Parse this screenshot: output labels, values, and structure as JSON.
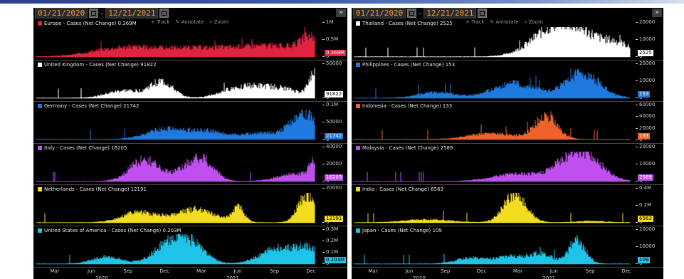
{
  "left": {
    "start_date": "01/21/2020",
    "end_date": "12/21/2021",
    "toolbar": {
      "track": "Track",
      "annotate": "Annotate",
      "zoom": "Zoom"
    },
    "x_ticks": [
      "Mar",
      "Jun",
      "Sep",
      "Dec",
      "Mar",
      "Jun",
      "Sep",
      "Dec"
    ],
    "years": [
      "2020",
      "2021"
    ],
    "panels": [
      {
        "legend": "Europe - Cases (Net Change) 0.369M",
        "color": "#e0233f",
        "last": "0.369M",
        "ticks": [
          "1M",
          "0.5M",
          "0"
        ],
        "last_text": "#ffffff"
      },
      {
        "legend": "United Kingdom - Cases (Net Change) 91822",
        "color": "#ffffff",
        "last": "91822",
        "ticks": [
          "50000",
          "0"
        ],
        "last_text": "#000000"
      },
      {
        "legend": "Germany - Cases (Net Change) 21742",
        "color": "#1f7ae0",
        "last": "21742",
        "ticks": [
          "0.1M",
          "50000",
          "0"
        ],
        "last_text": "#ffffff"
      },
      {
        "legend": "Italy - Cases (Net Change) 16205",
        "color": "#c04ff0",
        "last": "16205",
        "ticks": [
          "40000",
          "20000",
          "0"
        ],
        "last_text": "#ffffff"
      },
      {
        "legend": "Netherlands - Cases (Net Change) 12191",
        "color": "#f4dc1e",
        "last": "12191",
        "ticks": [
          "20000",
          "0"
        ],
        "last_text": "#000000"
      },
      {
        "legend": "United States of America - Cases (Net Change) 0.203M",
        "color": "#1ec4e8",
        "last": "0.203M",
        "ticks": [
          "0.3M",
          "0.2M",
          "0.1M",
          "0"
        ],
        "last_text": "#000000"
      }
    ]
  },
  "right": {
    "start_date": "01/21/2020",
    "end_date": "12/21/2021",
    "toolbar": {
      "track": "Track",
      "annotate": "Annotate",
      "zoom": "Zoom"
    },
    "x_ticks": [
      "Mar",
      "Jun",
      "Sep",
      "Dec",
      "Mar",
      "Jun",
      "Sep",
      "Dec"
    ],
    "years": [
      "2020",
      "2021"
    ],
    "panels": [
      {
        "legend": "Thailand - Cases (Net Change) 2525",
        "color": "#ffffff",
        "last": "2525",
        "ticks": [
          "20000",
          "10000",
          "0"
        ],
        "last_text": "#000000"
      },
      {
        "legend": "Philippines - Cases (Net Change) 153",
        "color": "#1f7ae0",
        "last": "153",
        "ticks": [
          "20000",
          "10000",
          "0"
        ],
        "last_text": "#ffffff"
      },
      {
        "legend": "Indonesia - Cases (Net Change) 133",
        "color": "#f0622a",
        "last": "133",
        "ticks": [
          "60000",
          "40000",
          "20000",
          "0"
        ],
        "last_text": "#ffffff"
      },
      {
        "legend": "Malaysia - Cases (Net Change) 2589",
        "color": "#c04ff0",
        "last": "2589",
        "ticks": [
          "20000",
          "10000",
          "0"
        ],
        "last_text": "#ffffff"
      },
      {
        "legend": "India - Cases (Net Change) 6563",
        "color": "#f4dc1e",
        "last": "6563",
        "ticks": [
          "0.4M",
          "0.2M",
          "0"
        ],
        "last_text": "#000000"
      },
      {
        "legend": "Japan - Cases (Net Change) 109",
        "color": "#1ec4e8",
        "last": "109",
        "ticks": [
          "20000",
          "10000",
          "0"
        ],
        "last_text": "#000000"
      }
    ]
  },
  "icons": {
    "calendar": "calendar-icon",
    "expand": "double-chevron-right-icon"
  }
}
